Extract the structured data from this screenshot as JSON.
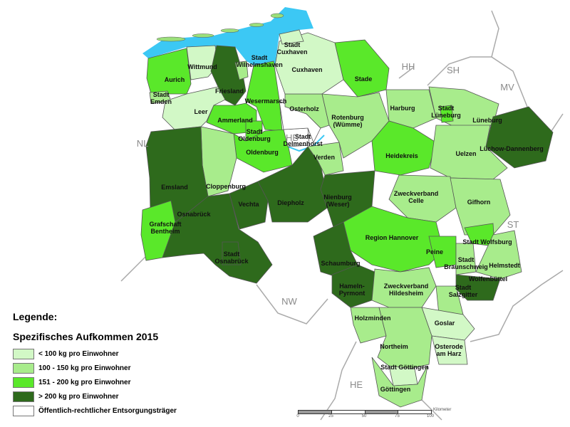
{
  "colors": {
    "1": "#d2f8c6",
    "2": "#a8ec8c",
    "3": "#5ae82a",
    "4": "#2e6a1c",
    "0": "#ffffff",
    "water": "#3cc8f4"
  },
  "neighbors": [
    "NL",
    "NW",
    "HE",
    "ST",
    "MV",
    "HH",
    "SH",
    "HB"
  ],
  "districts": [
    {
      "id": "aurich",
      "label": [
        "Aurich"
      ],
      "category": 3
    },
    {
      "id": "emden",
      "label": [
        "Stadt",
        "Emden"
      ],
      "category": 2
    },
    {
      "id": "wittmund",
      "label": [
        "Wittmund"
      ],
      "category": 1
    },
    {
      "id": "friesland",
      "label": [
        "Friesland"
      ],
      "category": 4
    },
    {
      "id": "wilhelmshaven",
      "label": [
        "Stadt",
        "Wilhelmshaven"
      ],
      "category": 2
    },
    {
      "id": "wesermarsch",
      "label": [
        "Wesermarsch"
      ],
      "category": 3
    },
    {
      "id": "leer",
      "label": [
        "Leer"
      ],
      "category": 1
    },
    {
      "id": "ammerland",
      "label": [
        "Ammerland"
      ],
      "category": 3
    },
    {
      "id": "stadt-oldenburg",
      "label": [
        "Stadt",
        "Oldenburg"
      ],
      "category": 3
    },
    {
      "id": "oldenburg",
      "label": [
        "Oldenburg"
      ],
      "category": 3
    },
    {
      "id": "delmenhorst",
      "label": [
        "Stadt",
        "Delmenhorst"
      ],
      "category": 0
    },
    {
      "id": "bremen",
      "label": [],
      "category": 0
    },
    {
      "id": "cloppenburg",
      "label": [
        "Cloppenburg"
      ],
      "category": 2
    },
    {
      "id": "emsland",
      "label": [
        "Emsland"
      ],
      "category": 4
    },
    {
      "id": "bentheim",
      "label": [
        "Grafschaft",
        "Bentheim"
      ],
      "category": 3
    },
    {
      "id": "osnabrueck",
      "label": [
        "Osnabrück"
      ],
      "category": 4
    },
    {
      "id": "stadt-osnabrueck",
      "label": [
        "Stadt",
        "Osnabrück"
      ],
      "category": 4
    },
    {
      "id": "vechta",
      "label": [
        "Vechta"
      ],
      "category": 4
    },
    {
      "id": "diepholz",
      "label": [
        "Diepholz"
      ],
      "category": 4
    },
    {
      "id": "verden",
      "label": [
        "Verden"
      ],
      "category": 2
    },
    {
      "id": "osterholz",
      "label": [
        "Osterholz"
      ],
      "category": 2
    },
    {
      "id": "cuxhaven",
      "label": [
        "Cuxhaven"
      ],
      "category": 1
    },
    {
      "id": "stadt-cuxhaven",
      "label": [
        "Stadt",
        "Cuxhaven"
      ],
      "category": 1
    },
    {
      "id": "stade",
      "label": [
        "Stade"
      ],
      "category": 3
    },
    {
      "id": "rotenburg",
      "label": [
        "Rotenburg",
        "(Wümme)"
      ],
      "category": 2
    },
    {
      "id": "harburg",
      "label": [
        "Harburg"
      ],
      "category": 2
    },
    {
      "id": "lueneburg",
      "label": [
        "Lüneburg"
      ],
      "category": 2
    },
    {
      "id": "stadt-lueneburg",
      "label": [
        "Stadt",
        "Lüneburg"
      ],
      "category": 3
    },
    {
      "id": "luechow",
      "label": [
        "Lüchow-Dannenberg"
      ],
      "category": 4
    },
    {
      "id": "heidekreis",
      "label": [
        "Heidekreis"
      ],
      "category": 3
    },
    {
      "id": "uelzen",
      "label": [
        "Uelzen"
      ],
      "category": 2
    },
    {
      "id": "nienburg",
      "label": [
        "Nienburg",
        "(Weser)"
      ],
      "category": 4
    },
    {
      "id": "celle",
      "label": [
        "Zweckverband",
        "Celle"
      ],
      "category": 2
    },
    {
      "id": "gifhorn",
      "label": [
        "Gifhorn"
      ],
      "category": 2
    },
    {
      "id": "hannover",
      "label": [
        "Region Hannover"
      ],
      "category": 3
    },
    {
      "id": "schaumburg",
      "label": [
        "Schaumburg"
      ],
      "category": 4
    },
    {
      "id": "hameln",
      "label": [
        "Hameln-",
        "Pyrmont"
      ],
      "category": 4
    },
    {
      "id": "hildesheim",
      "label": [
        "Zweckverband",
        "Hildesheim"
      ],
      "category": 2
    },
    {
      "id": "peine",
      "label": [
        "Peine"
      ],
      "category": 3
    },
    {
      "id": "braunschweig",
      "label": [
        "Stadt",
        "Braunschweig"
      ],
      "category": 2
    },
    {
      "id": "wolfsburg",
      "label": [
        "Stadt Wolfsburg"
      ],
      "category": 3
    },
    {
      "id": "helmstedt",
      "label": [
        "Helmstedt"
      ],
      "category": 2
    },
    {
      "id": "wolfenbuettel",
      "label": [
        "Wolfenbüttel"
      ],
      "category": 4
    },
    {
      "id": "salzgitter",
      "label": [
        "Stadt",
        "Salzgitter"
      ],
      "category": 2
    },
    {
      "id": "goslar",
      "label": [
        "Goslar"
      ],
      "category": 1
    },
    {
      "id": "holzminden",
      "label": [
        "Holzminden"
      ],
      "category": 2
    },
    {
      "id": "northeim",
      "label": [
        "Northeim"
      ],
      "category": 2
    },
    {
      "id": "osterode",
      "label": [
        "Osterode",
        "am Harz"
      ],
      "category": 1
    },
    {
      "id": "stadt-goettingen",
      "label": [
        "Stadt Göttingen"
      ],
      "category": 1
    },
    {
      "id": "goettingen",
      "label": [
        "Göttingen"
      ],
      "category": 2
    }
  ],
  "legend": {
    "title": "Legende:",
    "subtitle": "Spezifisches Aufkommen 2015",
    "items": [
      {
        "label": "< 100 kg pro Einwohner",
        "category": 1
      },
      {
        "label": "100 - 150 kg pro Einwohner",
        "category": 2
      },
      {
        "label": "151 - 200 kg pro Einwohner",
        "category": 3
      },
      {
        "label": "> 200 kg pro Einwohner",
        "category": 4
      },
      {
        "label": "Öffentlich-rechtlicher Entsorgungsträger",
        "category": 0
      }
    ]
  },
  "scale": {
    "ticks": [
      "0",
      "25",
      "50",
      "75",
      "100"
    ],
    "unit": "Kilometer"
  }
}
